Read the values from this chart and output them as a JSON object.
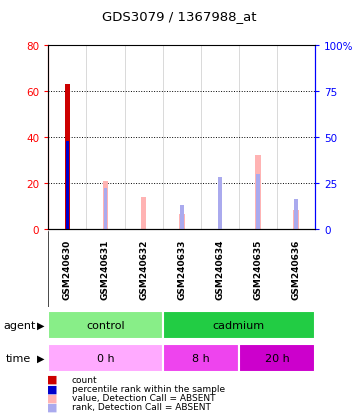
{
  "title": "GDS3079 / 1367988_at",
  "samples": [
    "GSM240630",
    "GSM240631",
    "GSM240632",
    "GSM240633",
    "GSM240634",
    "GSM240635",
    "GSM240636"
  ],
  "count_values": [
    63,
    0,
    0,
    0,
    0,
    0,
    0
  ],
  "percentile_rank_values": [
    38,
    0,
    0,
    0,
    0,
    0,
    0
  ],
  "value_absent": [
    0,
    26,
    17,
    8,
    0,
    40,
    10
  ],
  "rank_absent": [
    0,
    22,
    0,
    13,
    28,
    30,
    16
  ],
  "left_yaxis_ticks": [
    0,
    20,
    40,
    60,
    80
  ],
  "right_yaxis_ticks": [
    0,
    25,
    50,
    75,
    100
  ],
  "ylim_left": [
    0,
    80
  ],
  "ylim_right": [
    0,
    100
  ],
  "agent_groups": [
    {
      "label": "control",
      "start": 0,
      "end": 3,
      "color": "#88EE88"
    },
    {
      "label": "cadmium",
      "start": 3,
      "end": 7,
      "color": "#22CC44"
    }
  ],
  "time_groups": [
    {
      "label": "0 h",
      "start": 0,
      "end": 3,
      "color": "#FFAAFF"
    },
    {
      "label": "8 h",
      "start": 3,
      "end": 5,
      "color": "#EE44EE"
    },
    {
      "label": "20 h",
      "start": 5,
      "end": 7,
      "color": "#CC00CC"
    }
  ],
  "color_count": "#CC0000",
  "color_percentile": "#0000CC",
  "color_value_absent": "#FFB3B3",
  "color_rank_absent": "#AAAAEE",
  "background_color": "#FFFFFF",
  "plot_bg": "#FFFFFF",
  "label_area_color": "#CCCCCC"
}
